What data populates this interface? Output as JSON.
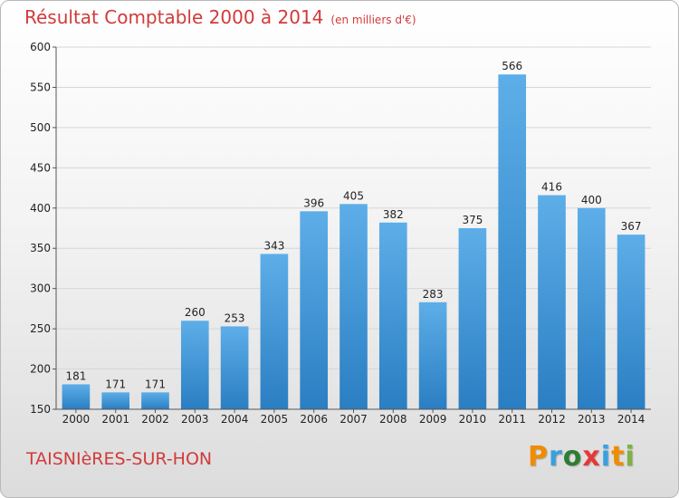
{
  "title": "Résultat Comptable 2000 à 2014",
  "subtitle": "(en milliers d'€)",
  "commune": "TAISNIèRES-SUR-HON",
  "logo": {
    "letters": [
      "P",
      "r",
      "o",
      "x",
      "i",
      "t",
      "i"
    ],
    "colors": [
      "#f08c00",
      "#3aa0e0",
      "#2e7d32",
      "#e53935",
      "#3aa0e0",
      "#f08c00",
      "#7cb342"
    ]
  },
  "colors": {
    "bar_top": "#5daee8",
    "bar_bottom": "#2a7ec2",
    "title": "#d23a3a"
  },
  "chart_data": {
    "type": "bar",
    "title": "Résultat Comptable 2000 à 2014",
    "xlabel": "",
    "ylabel": "",
    "categories": [
      "2000",
      "2001",
      "2002",
      "2003",
      "2004",
      "2005",
      "2006",
      "2007",
      "2008",
      "2009",
      "2010",
      "2011",
      "2012",
      "2013",
      "2014"
    ],
    "values": [
      181,
      171,
      171,
      260,
      253,
      343,
      396,
      405,
      382,
      283,
      375,
      566,
      416,
      400,
      367
    ],
    "ylim": [
      150,
      600
    ],
    "yticks": [
      150,
      200,
      250,
      300,
      350,
      400,
      450,
      500,
      550,
      600
    ],
    "grid": true
  }
}
